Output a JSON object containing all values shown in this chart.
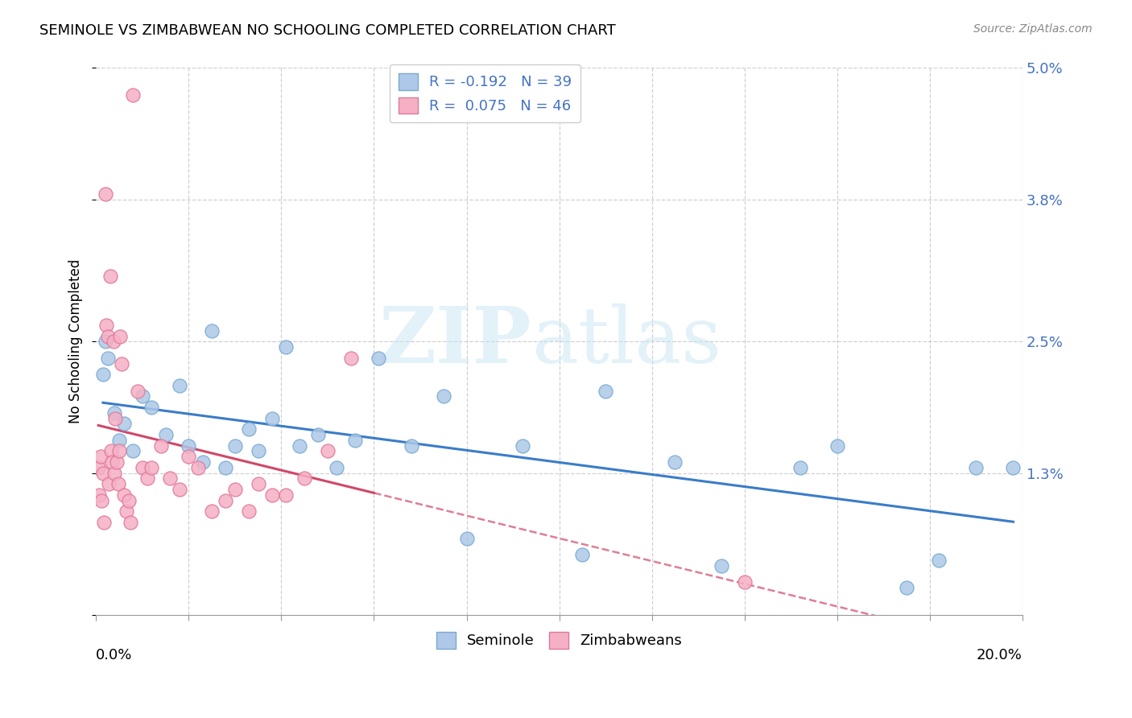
{
  "title": "SEMINOLE VS ZIMBABWEAN NO SCHOOLING COMPLETED CORRELATION CHART",
  "source": "Source: ZipAtlas.com",
  "ylabel": "No Schooling Completed",
  "xlim": [
    0.0,
    20.0
  ],
  "ylim": [
    0.0,
    5.0
  ],
  "ytick_vals": [
    0.0,
    1.3,
    2.5,
    3.8,
    5.0
  ],
  "ytick_labels": [
    "",
    "1.3%",
    "2.5%",
    "3.8%",
    "5.0%"
  ],
  "watermark_zip": "ZIP",
  "watermark_atlas": "atlas",
  "seminole_color": "#adc8e8",
  "zimbabwean_color": "#f5b0c5",
  "seminole_edge": "#7aaad0",
  "zimbabwean_edge": "#e07898",
  "trend_seminole_color": "#3a7cc9",
  "trend_zimbabwean_color": "#d04868",
  "seminole_x": [
    0.15,
    0.2,
    0.25,
    0.4,
    0.5,
    0.6,
    0.8,
    1.0,
    1.2,
    1.5,
    1.8,
    2.0,
    2.3,
    2.5,
    2.8,
    3.0,
    3.3,
    3.5,
    3.8,
    4.1,
    4.4,
    4.8,
    5.2,
    5.6,
    6.1,
    6.8,
    7.5,
    8.0,
    9.2,
    10.5,
    11.0,
    12.5,
    13.5,
    15.2,
    16.0,
    17.5,
    18.2,
    19.0,
    19.8
  ],
  "seminole_y": [
    2.2,
    2.5,
    2.35,
    1.85,
    1.6,
    1.75,
    1.5,
    2.0,
    1.9,
    1.65,
    2.1,
    1.55,
    1.4,
    2.6,
    1.35,
    1.55,
    1.7,
    1.5,
    1.8,
    2.45,
    1.55,
    1.65,
    1.35,
    1.6,
    2.35,
    1.55,
    2.0,
    0.7,
    1.55,
    0.55,
    2.05,
    1.4,
    0.45,
    1.35,
    1.55,
    0.25,
    0.5,
    1.35,
    1.35
  ],
  "zimbabwean_x": [
    0.05,
    0.07,
    0.1,
    0.12,
    0.15,
    0.17,
    0.2,
    0.22,
    0.25,
    0.27,
    0.3,
    0.32,
    0.35,
    0.38,
    0.4,
    0.42,
    0.45,
    0.48,
    0.5,
    0.52,
    0.55,
    0.6,
    0.65,
    0.7,
    0.75,
    0.8,
    0.9,
    1.0,
    1.1,
    1.2,
    1.4,
    1.6,
    1.8,
    2.0,
    2.2,
    2.5,
    2.8,
    3.0,
    3.3,
    3.5,
    3.8,
    4.1,
    4.5,
    5.0,
    5.5,
    14.0
  ],
  "zimbabwean_y": [
    1.35,
    1.1,
    1.45,
    1.05,
    1.3,
    0.85,
    3.85,
    2.65,
    2.55,
    1.2,
    3.1,
    1.5,
    1.4,
    2.5,
    1.3,
    1.8,
    1.4,
    1.2,
    1.5,
    2.55,
    2.3,
    1.1,
    0.95,
    1.05,
    0.85,
    4.75,
    2.05,
    1.35,
    1.25,
    1.35,
    1.55,
    1.25,
    1.15,
    1.45,
    1.35,
    0.95,
    1.05,
    1.15,
    0.95,
    1.2,
    1.1,
    1.1,
    1.25,
    1.5,
    2.35,
    0.3
  ]
}
